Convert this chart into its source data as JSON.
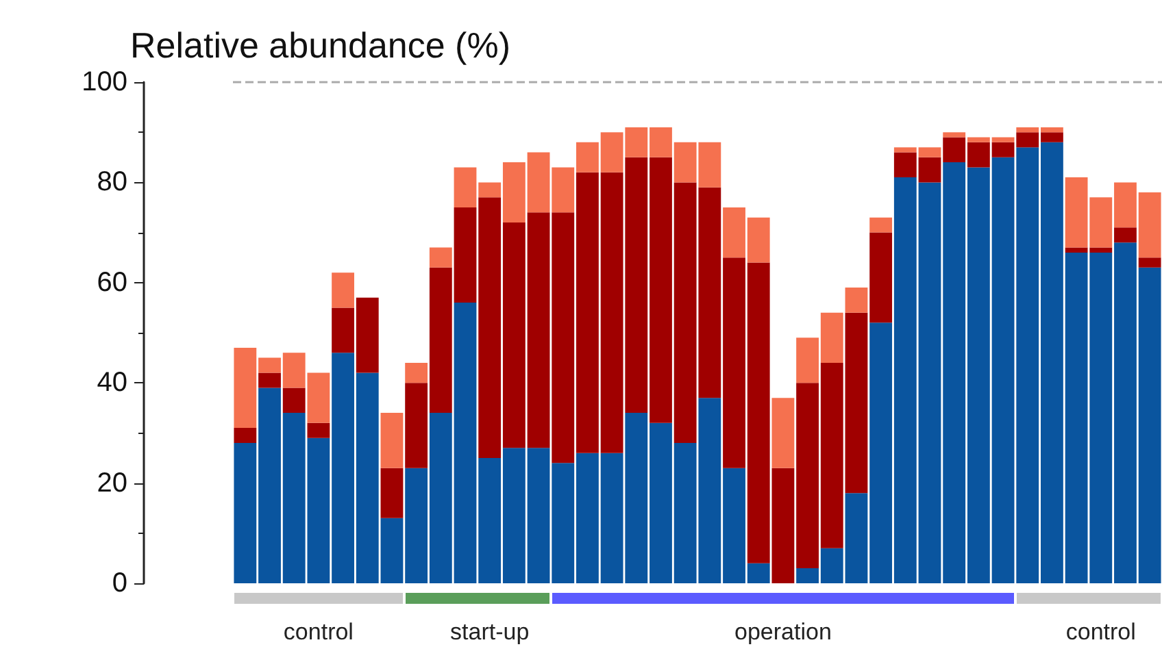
{
  "chart_data": {
    "type": "bar",
    "stacked": true,
    "ylabel": "Relative abundance (%)",
    "categories": [
      null,
      null,
      null,
      "control",
      null,
      null,
      null,
      null,
      null,
      null,
      "start-up",
      null,
      null,
      null,
      null,
      null,
      null,
      null,
      null,
      null,
      null,
      null,
      "operation",
      null,
      null,
      null,
      null,
      null,
      null,
      null,
      null,
      null,
      null,
      null,
      null,
      "control",
      null,
      null
    ],
    "series": [
      {
        "color": "#0a559f",
        "values": [
          28,
          39,
          34,
          29,
          46,
          42,
          13,
          23,
          34,
          56,
          25,
          27,
          27,
          24,
          26,
          26,
          34,
          32,
          28,
          37,
          23,
          4,
          0,
          3,
          7,
          18,
          52,
          81,
          80,
          84,
          83,
          85,
          87,
          88,
          66,
          66,
          68,
          63
        ]
      },
      {
        "color": "#a00000",
        "values": [
          3,
          3,
          5,
          3,
          9,
          15,
          10,
          17,
          29,
          19,
          52,
          45,
          47,
          50,
          56,
          56,
          51,
          53,
          52,
          42,
          42,
          60,
          23,
          37,
          37,
          36,
          18,
          5,
          5,
          5,
          5,
          3,
          3,
          2,
          1,
          1,
          3,
          2
        ]
      },
      {
        "color": "#f5714f",
        "values": [
          16,
          3,
          7,
          10,
          7,
          0,
          11,
          4,
          4,
          8,
          3,
          12,
          12,
          9,
          6,
          8,
          6,
          6,
          8,
          9,
          10,
          9,
          14,
          9,
          10,
          5,
          3,
          1,
          2,
          1,
          1,
          1,
          1,
          1,
          14,
          10,
          9,
          13
        ]
      }
    ],
    "ylim": [
      0,
      100
    ],
    "yticks": [
      0,
      20,
      40,
      60,
      80,
      100
    ],
    "grid": false,
    "ref_lines": [
      {
        "axis": "y",
        "value": 100,
        "color": "#aaaaaa",
        "line_style": "dashed"
      }
    ]
  }
}
